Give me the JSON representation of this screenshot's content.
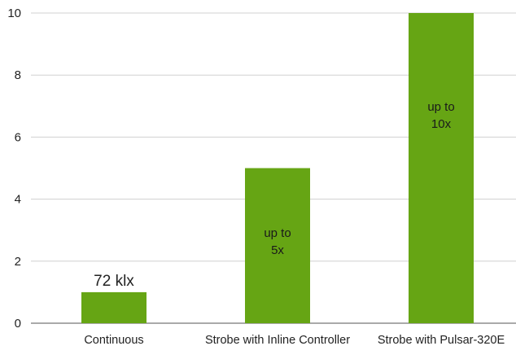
{
  "chart_data": {
    "type": "bar",
    "categories": [
      "Continuous",
      "Strobe with Inline Controller",
      "Strobe with Pulsar-320E"
    ],
    "values": [
      1,
      5,
      10
    ],
    "ylim": [
      0,
      10
    ],
    "yticks": [
      "0",
      "2",
      "4",
      "6",
      "8",
      "10"
    ],
    "grid": true,
    "bar_color": "#66a514",
    "grid_color": "#d0d0d0",
    "annotations": [
      {
        "category": "Continuous",
        "text": "72 klx",
        "position": "above"
      },
      {
        "category": "Strobe with Inline Controller",
        "text": "up to 5x",
        "position": "inside"
      },
      {
        "category": "Strobe with Pulsar-320E",
        "text": "up to 10x",
        "position": "inside"
      }
    ]
  }
}
